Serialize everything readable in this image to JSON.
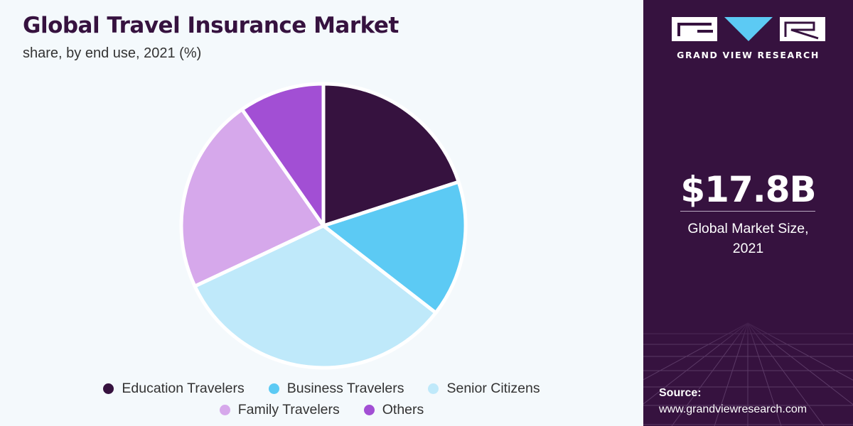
{
  "header": {
    "title": "Global Travel Insurance Market",
    "subtitle": "share, by end use, 2021 (%)"
  },
  "chart_data": {
    "type": "pie",
    "categories": [
      "Education Travelers",
      "Business Travelers",
      "Senior Citizens",
      "Family Travelers",
      "Others"
    ],
    "values": [
      20,
      15.5,
      32.5,
      22.3,
      9.7
    ],
    "colors": [
      "#36123f",
      "#5ccaf4",
      "#bfe9fa",
      "#d6a8eb",
      "#a24fd4"
    ],
    "start": "top",
    "direction": "clockwise",
    "legend_position": "bottom"
  },
  "legend": {
    "items": [
      {
        "label": "Education Travelers",
        "color": "#36123f"
      },
      {
        "label": "Business Travelers",
        "color": "#5ccaf4"
      },
      {
        "label": "Senior Citizens",
        "color": "#bfe9fa"
      },
      {
        "label": "Family Travelers",
        "color": "#d6a8eb"
      },
      {
        "label": "Others",
        "color": "#a24fd4"
      }
    ]
  },
  "sidebar": {
    "brand": "GRAND VIEW RESEARCH",
    "market_size": "$17.8B",
    "market_size_caption_line1": "Global Market Size,",
    "market_size_caption_line2": "2021",
    "source_label": "Source:",
    "source_url": "www.grandviewresearch.com",
    "background_color": "#36123f"
  }
}
